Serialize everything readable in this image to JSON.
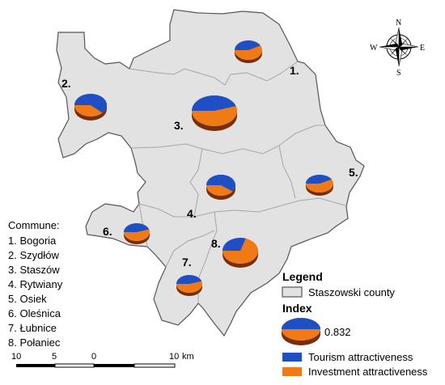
{
  "communes": [
    {
      "id": "1",
      "label": "1.",
      "name": "Bogoria",
      "list_text": "1. Bogoria",
      "tourism": 0.42,
      "investment": 0.58
    },
    {
      "id": "2",
      "label": "2.",
      "name": "Szydłów",
      "list_text": "2. Szydłów",
      "tourism": 0.62,
      "investment": 0.38
    },
    {
      "id": "3",
      "label": "3.",
      "name": "Staszów",
      "list_text": "3. Staszów",
      "tourism": 0.45,
      "investment": 0.55
    },
    {
      "id": "4",
      "label": "4.",
      "name": "Rytwiany",
      "list_text": "4. Rytwiany",
      "tourism": 0.6,
      "investment": 0.4
    },
    {
      "id": "5",
      "label": "5.",
      "name": "Osiek",
      "list_text": "5. Osiek",
      "tourism": 0.42,
      "investment": 0.58
    },
    {
      "id": "6",
      "label": "6.",
      "name": "Oleśnica",
      "list_text": "6. Oleśnica",
      "tourism": 0.45,
      "investment": 0.55
    },
    {
      "id": "7",
      "label": "7.",
      "name": "Łubnice",
      "list_text": "7. Łubnice",
      "tourism": 0.45,
      "investment": 0.55
    },
    {
      "id": "8",
      "label": "8.",
      "name": "Połaniec",
      "list_text": "8. Połaniec",
      "tourism": 0.3,
      "investment": 0.7
    }
  ],
  "commune_header": "Commune:",
  "legend": {
    "title": "Legend",
    "county_label": "Staszowski county",
    "index_title": "Index",
    "index_value": "0.832",
    "tourism_label": "Tourism attractiveness",
    "investment_label": "Investment attractiveness"
  },
  "scale": {
    "ticks": [
      "10",
      "5",
      "0",
      "10"
    ],
    "unit": "km"
  },
  "compass": {
    "n": "N",
    "s": "S",
    "e": "E",
    "w": "W"
  },
  "colors": {
    "tourism": "#1f4fc4",
    "investment": "#f07a15",
    "investment_side": "#7a2e08",
    "tourism_side": "#0c2a70",
    "county_fill": "#e2e2e2",
    "border": "#555555",
    "inner_border": "#a6a6a6"
  }
}
